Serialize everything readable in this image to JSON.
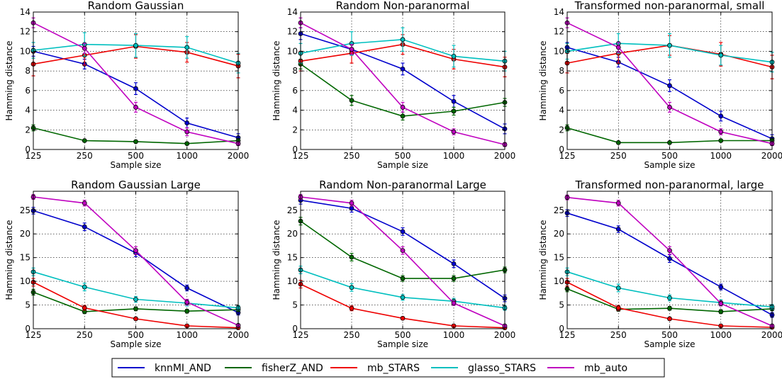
{
  "chart_data": [
    {
      "type": "line",
      "title": "Random Gaussian",
      "xlabel": "Sample size",
      "ylabel": "Hamming distance",
      "x": [
        125,
        250,
        500,
        1000,
        2000
      ],
      "x_ticks": [
        "125",
        "250",
        "500",
        "1000",
        "2000"
      ],
      "ylim": [
        0,
        14
      ],
      "y_ticks": [
        0,
        2,
        4,
        6,
        8,
        10,
        12,
        14
      ],
      "grid": true,
      "series": [
        {
          "name": "knnMI_AND",
          "values": [
            10.0,
            8.7,
            6.2,
            2.7,
            1.2
          ],
          "errors": [
            0.5,
            0.5,
            0.6,
            0.5,
            0.4
          ]
        },
        {
          "name": "fisherZ_AND",
          "values": [
            2.2,
            0.9,
            0.8,
            0.6,
            0.9
          ],
          "errors": [
            0.3,
            0.1,
            0.1,
            0.1,
            0.2
          ]
        },
        {
          "name": "mb_STARS",
          "values": [
            8.7,
            9.6,
            10.5,
            9.9,
            8.5
          ],
          "errors": [
            1.2,
            1.0,
            1.2,
            1.0,
            1.2
          ]
        },
        {
          "name": "glasso_STARS",
          "values": [
            10.1,
            10.7,
            10.6,
            10.4,
            8.8
          ],
          "errors": [
            0.8,
            1.2,
            1.2,
            1.1,
            1.0
          ]
        },
        {
          "name": "mb_auto",
          "values": [
            12.9,
            10.3,
            4.3,
            1.8,
            0.6
          ],
          "errors": [
            0.5,
            0.5,
            0.5,
            0.4,
            0.2
          ]
        }
      ]
    },
    {
      "type": "line",
      "title": "Random Non-paranormal",
      "xlabel": "Sample size",
      "ylabel": "Hamming distance",
      "x": [
        125,
        250,
        500,
        1000,
        2000
      ],
      "x_ticks": [
        "125",
        "250",
        "500",
        "1000",
        "2000"
      ],
      "ylim": [
        0,
        14
      ],
      "y_ticks": [
        0,
        2,
        4,
        6,
        8,
        10,
        12,
        14
      ],
      "grid": true,
      "series": [
        {
          "name": "knnMI_AND",
          "values": [
            11.8,
            10.2,
            8.2,
            4.9,
            2.1
          ],
          "errors": [
            0.6,
            0.6,
            0.6,
            0.6,
            0.5
          ]
        },
        {
          "name": "fisherZ_AND",
          "values": [
            8.7,
            5.0,
            3.4,
            3.9,
            4.8
          ],
          "errors": [
            0.5,
            0.5,
            0.4,
            0.4,
            0.4
          ]
        },
        {
          "name": "mb_STARS",
          "values": [
            9.0,
            9.8,
            10.7,
            9.2,
            8.4
          ],
          "errors": [
            1.0,
            1.0,
            1.0,
            1.0,
            1.0
          ]
        },
        {
          "name": "glasso_STARS",
          "values": [
            9.8,
            10.8,
            11.2,
            9.5,
            9.0
          ],
          "errors": [
            1.0,
            1.2,
            1.2,
            1.1,
            1.0
          ]
        },
        {
          "name": "mb_auto",
          "values": [
            12.9,
            10.2,
            4.3,
            1.8,
            0.5
          ],
          "errors": [
            0.5,
            0.5,
            0.5,
            0.3,
            0.2
          ]
        }
      ]
    },
    {
      "type": "line",
      "title": "Transformed non-paranormal, small",
      "xlabel": "Sample size",
      "ylabel": "Hamming distance",
      "x": [
        125,
        250,
        500,
        1000,
        2000
      ],
      "x_ticks": [
        "125",
        "250",
        "500",
        "1000",
        "2000"
      ],
      "ylim": [
        0,
        14
      ],
      "y_ticks": [
        0,
        2,
        4,
        6,
        8,
        10,
        12,
        14
      ],
      "grid": true,
      "series": [
        {
          "name": "knnMI_AND",
          "values": [
            10.4,
            8.9,
            6.5,
            3.4,
            1.1
          ],
          "errors": [
            0.5,
            0.5,
            0.6,
            0.5,
            0.4
          ]
        },
        {
          "name": "fisherZ_AND",
          "values": [
            2.2,
            0.7,
            0.7,
            0.9,
            0.9
          ],
          "errors": [
            0.3,
            0.1,
            0.1,
            0.1,
            0.2
          ]
        },
        {
          "name": "mb_STARS",
          "values": [
            8.8,
            9.8,
            10.6,
            9.7,
            8.4
          ],
          "errors": [
            1.0,
            1.0,
            1.0,
            1.2,
            1.2
          ]
        },
        {
          "name": "glasso_STARS",
          "values": [
            10.0,
            10.8,
            10.6,
            9.6,
            8.9
          ],
          "errors": [
            0.8,
            1.0,
            1.2,
            1.0,
            1.0
          ]
        },
        {
          "name": "mb_auto",
          "values": [
            12.9,
            10.4,
            4.3,
            1.8,
            0.6
          ],
          "errors": [
            0.5,
            0.5,
            0.5,
            0.3,
            0.2
          ]
        }
      ]
    },
    {
      "type": "line",
      "title": "Random Gaussian Large",
      "xlabel": "Sample size",
      "ylabel": "Hamming distance",
      "x": [
        125,
        250,
        500,
        1000,
        2000
      ],
      "x_ticks": [
        "125",
        "250",
        "500",
        "1000",
        "2000"
      ],
      "ylim": [
        0,
        29
      ],
      "y_ticks": [
        0,
        5,
        10,
        15,
        20,
        25
      ],
      "grid": true,
      "series": [
        {
          "name": "knnMI_AND",
          "values": [
            24.9,
            21.5,
            16.0,
            8.6,
            3.4
          ],
          "errors": [
            0.7,
            0.8,
            0.8,
            0.6,
            0.5
          ]
        },
        {
          "name": "fisherZ_AND",
          "values": [
            7.7,
            3.6,
            4.2,
            3.7,
            4.0
          ],
          "errors": [
            0.6,
            0.4,
            0.4,
            0.4,
            0.4
          ]
        },
        {
          "name": "mb_STARS",
          "values": [
            9.8,
            4.4,
            2.1,
            0.6,
            0.2
          ],
          "errors": [
            0.8,
            0.5,
            0.3,
            0.2,
            0.1
          ]
        },
        {
          "name": "glasso_STARS",
          "values": [
            12.0,
            8.8,
            6.2,
            5.4,
            4.4
          ],
          "errors": [
            0.8,
            0.8,
            0.6,
            0.6,
            0.5
          ]
        },
        {
          "name": "mb_auto",
          "values": [
            27.8,
            26.5,
            16.5,
            5.6,
            0.7
          ],
          "errors": [
            0.5,
            0.6,
            0.8,
            0.6,
            0.2
          ]
        }
      ]
    },
    {
      "type": "line",
      "title": "Random Non-paranormal Large",
      "xlabel": "Sample size",
      "ylabel": "Hamming distance",
      "x": [
        125,
        250,
        500,
        1000,
        2000
      ],
      "x_ticks": [
        "125",
        "250",
        "500",
        "1000",
        "2000"
      ],
      "ylim": [
        0,
        29
      ],
      "y_ticks": [
        0,
        5,
        10,
        15,
        20,
        25
      ],
      "grid": true,
      "series": [
        {
          "name": "knnMI_AND",
          "values": [
            27.1,
            25.4,
            20.5,
            13.7,
            6.4
          ],
          "errors": [
            0.8,
            0.8,
            0.8,
            0.8,
            0.7
          ]
        },
        {
          "name": "fisherZ_AND",
          "values": [
            22.7,
            15.1,
            10.6,
            10.6,
            12.4
          ],
          "errors": [
            0.8,
            0.8,
            0.6,
            0.6,
            0.6
          ]
        },
        {
          "name": "mb_STARS",
          "values": [
            9.4,
            4.3,
            2.2,
            0.6,
            0.2
          ],
          "errors": [
            0.8,
            0.5,
            0.3,
            0.2,
            0.1
          ]
        },
        {
          "name": "glasso_STARS",
          "values": [
            12.4,
            8.7,
            6.6,
            5.8,
            4.4
          ],
          "errors": [
            0.8,
            0.8,
            0.6,
            0.6,
            0.5
          ]
        },
        {
          "name": "mb_auto",
          "values": [
            27.8,
            26.5,
            16.5,
            5.4,
            0.6
          ],
          "errors": [
            0.5,
            0.6,
            0.8,
            0.5,
            0.2
          ]
        }
      ]
    },
    {
      "type": "line",
      "title": "Transformed non-paranormal, large",
      "xlabel": "Sample size",
      "ylabel": "Hamming distance",
      "x": [
        125,
        250,
        500,
        1000,
        2000
      ],
      "x_ticks": [
        "125",
        "250",
        "500",
        "1000",
        "2000"
      ],
      "ylim": [
        0,
        29
      ],
      "y_ticks": [
        0,
        5,
        10,
        15,
        20,
        25
      ],
      "grid": true,
      "series": [
        {
          "name": "knnMI_AND",
          "values": [
            24.4,
            21.0,
            14.8,
            8.8,
            2.9
          ],
          "errors": [
            0.7,
            0.7,
            0.8,
            0.6,
            0.5
          ]
        },
        {
          "name": "fisherZ_AND",
          "values": [
            8.4,
            4.1,
            4.3,
            3.6,
            4.2
          ],
          "errors": [
            0.6,
            0.4,
            0.4,
            0.4,
            0.4
          ]
        },
        {
          "name": "mb_STARS",
          "values": [
            9.8,
            4.4,
            2.1,
            0.6,
            0.3
          ],
          "errors": [
            0.8,
            0.5,
            0.3,
            0.2,
            0.1
          ]
        },
        {
          "name": "glasso_STARS",
          "values": [
            12.0,
            8.6,
            6.5,
            5.5,
            4.6
          ],
          "errors": [
            0.8,
            0.8,
            0.6,
            0.6,
            0.5
          ]
        },
        {
          "name": "mb_auto",
          "values": [
            27.7,
            26.5,
            16.5,
            5.3,
            0.6
          ],
          "errors": [
            0.5,
            0.6,
            0.8,
            0.5,
            0.2
          ]
        }
      ]
    }
  ],
  "legend": {
    "placement": "bottom-center",
    "entries": [
      {
        "name": "knnMI_AND",
        "color": "#0000cc"
      },
      {
        "name": "fisherZ_AND",
        "color": "#006600"
      },
      {
        "name": "mb_STARS",
        "color": "#ee0000"
      },
      {
        "name": "glasso_STARS",
        "color": "#00bfbf"
      },
      {
        "name": "mb_auto",
        "color": "#bf00bf"
      }
    ]
  }
}
